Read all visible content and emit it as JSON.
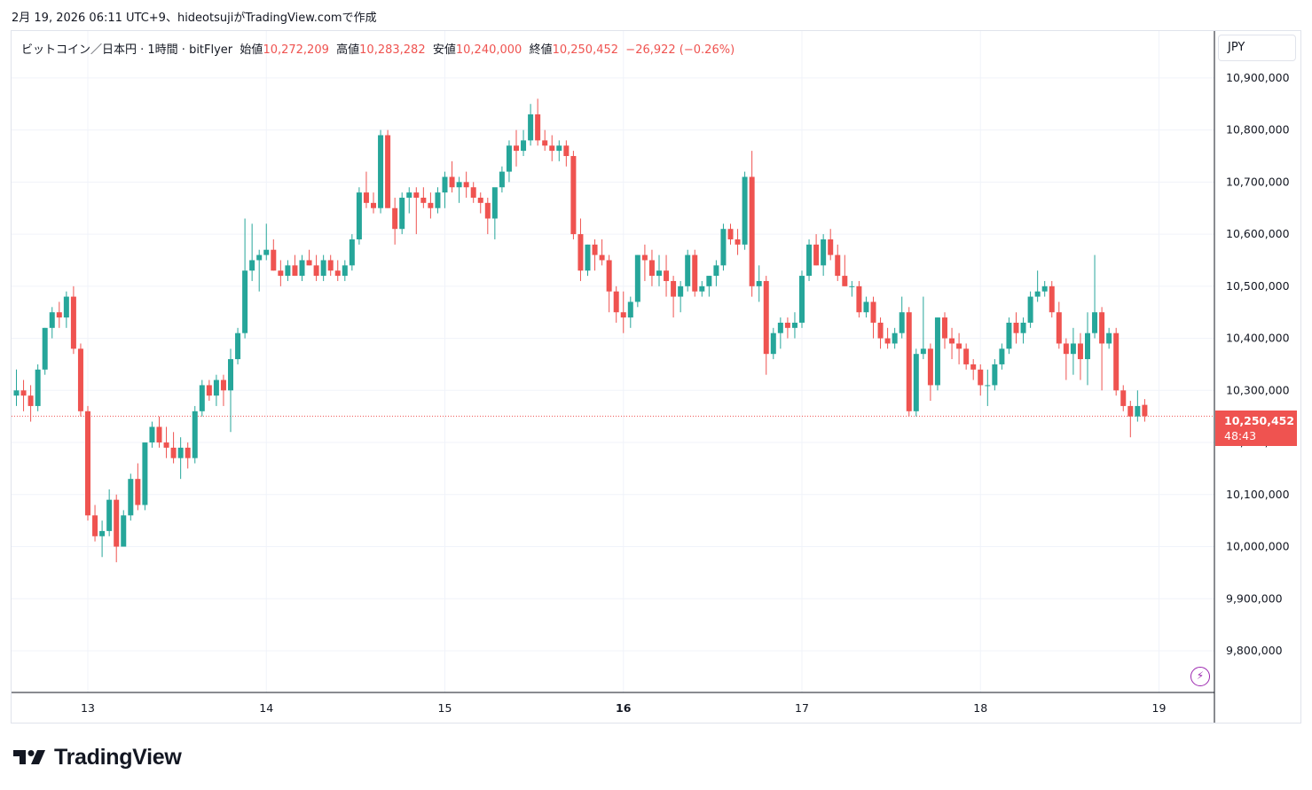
{
  "header": {
    "text": "2月 19, 2026 06:11 UTC+9、hideotsujiがTradingView.comで作成"
  },
  "legend": {
    "symbol": "ビットコイン／日本円 · 1時間 · bitFlyer",
    "open_label": "始値",
    "open_value": "10,272,209",
    "high_label": "高値",
    "high_value": "10,283,282",
    "low_label": "安値",
    "low_value": "10,240,000",
    "close_label": "終値",
    "close_value": "10,250,452",
    "change": "−26,922 (−0.26%)"
  },
  "currency": "JPY",
  "price_tag": {
    "value": "10,250,452",
    "countdown": "48:43"
  },
  "branding": {
    "logo_text": "TradingView"
  },
  "colors": {
    "up": "#26a69a",
    "down": "#ef5350",
    "grid": "#f0f3fa",
    "text": "#131722",
    "last_line": "#ef5350"
  },
  "chart_data": {
    "type": "candlestick",
    "ylim": [
      9720000,
      10990000
    ],
    "y_ticks": [
      9800000,
      9900000,
      10000000,
      10100000,
      10200000,
      10300000,
      10400000,
      10500000,
      10600000,
      10700000,
      10800000,
      10900000
    ],
    "y_tick_labels": [
      "9,800,000",
      "9,900,000",
      "10,000,000",
      "10,100,000",
      "10,200,000",
      "10,300,000",
      "10,400,000",
      "10,500,000",
      "10,600,000",
      "10,700,000",
      "10,800,000",
      "10,900,000"
    ],
    "x_ticks": [
      {
        "label": "13",
        "index": 10,
        "bold": false
      },
      {
        "label": "14",
        "index": 35,
        "bold": false
      },
      {
        "label": "15",
        "index": 60,
        "bold": false
      },
      {
        "label": "16",
        "index": 85,
        "bold": true
      },
      {
        "label": "17",
        "index": 110,
        "bold": false
      },
      {
        "label": "18",
        "index": 135,
        "bold": false
      },
      {
        "label": "19",
        "index": 160,
        "bold": false
      }
    ],
    "last_price": 10250452,
    "candles": [
      [
        10290000,
        10340000,
        10270000,
        10300000
      ],
      [
        10300000,
        10320000,
        10260000,
        10290000
      ],
      [
        10290000,
        10310000,
        10240000,
        10270000
      ],
      [
        10270000,
        10350000,
        10260000,
        10340000
      ],
      [
        10340000,
        10420000,
        10330000,
        10420000
      ],
      [
        10420000,
        10460000,
        10400000,
        10450000
      ],
      [
        10450000,
        10470000,
        10420000,
        10440000
      ],
      [
        10440000,
        10490000,
        10420000,
        10480000
      ],
      [
        10480000,
        10500000,
        10370000,
        10380000
      ],
      [
        10380000,
        10390000,
        10250000,
        10260000
      ],
      [
        10260000,
        10270000,
        10050000,
        10060000
      ],
      [
        10060000,
        10080000,
        10010000,
        10020000
      ],
      [
        10020000,
        10050000,
        9980000,
        10030000
      ],
      [
        10030000,
        10110000,
        10020000,
        10090000
      ],
      [
        10090000,
        10100000,
        9970000,
        10000000
      ],
      [
        10000000,
        10070000,
        10000000,
        10060000
      ],
      [
        10060000,
        10140000,
        10050000,
        10130000
      ],
      [
        10130000,
        10160000,
        10070000,
        10080000
      ],
      [
        10080000,
        10200000,
        10070000,
        10200000
      ],
      [
        10200000,
        10240000,
        10190000,
        10230000
      ],
      [
        10230000,
        10250000,
        10190000,
        10200000
      ],
      [
        10200000,
        10230000,
        10170000,
        10190000
      ],
      [
        10190000,
        10220000,
        10160000,
        10170000
      ],
      [
        10170000,
        10210000,
        10130000,
        10190000
      ],
      [
        10190000,
        10200000,
        10150000,
        10170000
      ],
      [
        10170000,
        10270000,
        10160000,
        10260000
      ],
      [
        10260000,
        10320000,
        10250000,
        10310000
      ],
      [
        10310000,
        10320000,
        10280000,
        10290000
      ],
      [
        10290000,
        10330000,
        10270000,
        10320000
      ],
      [
        10320000,
        10330000,
        10270000,
        10300000
      ],
      [
        10300000,
        10380000,
        10220000,
        10360000
      ],
      [
        10360000,
        10420000,
        10350000,
        10410000
      ],
      [
        10410000,
        10630000,
        10400000,
        10530000
      ],
      [
        10530000,
        10620000,
        10510000,
        10550000
      ],
      [
        10550000,
        10570000,
        10490000,
        10560000
      ],
      [
        10560000,
        10620000,
        10550000,
        10570000
      ],
      [
        10570000,
        10590000,
        10530000,
        10530000
      ],
      [
        10530000,
        10550000,
        10500000,
        10520000
      ],
      [
        10520000,
        10550000,
        10510000,
        10540000
      ],
      [
        10540000,
        10560000,
        10520000,
        10520000
      ],
      [
        10520000,
        10560000,
        10510000,
        10550000
      ],
      [
        10550000,
        10570000,
        10540000,
        10540000
      ],
      [
        10540000,
        10560000,
        10510000,
        10520000
      ],
      [
        10520000,
        10560000,
        10510000,
        10550000
      ],
      [
        10550000,
        10560000,
        10520000,
        10530000
      ],
      [
        10530000,
        10550000,
        10510000,
        10520000
      ],
      [
        10520000,
        10550000,
        10510000,
        10540000
      ],
      [
        10540000,
        10600000,
        10530000,
        10590000
      ],
      [
        10590000,
        10690000,
        10580000,
        10680000
      ],
      [
        10680000,
        10720000,
        10650000,
        10660000
      ],
      [
        10660000,
        10680000,
        10640000,
        10650000
      ],
      [
        10650000,
        10800000,
        10640000,
        10790000
      ],
      [
        10790000,
        10800000,
        10650000,
        10650000
      ],
      [
        10650000,
        10670000,
        10580000,
        10610000
      ],
      [
        10610000,
        10680000,
        10600000,
        10670000
      ],
      [
        10670000,
        10690000,
        10640000,
        10680000
      ],
      [
        10680000,
        10690000,
        10600000,
        10670000
      ],
      [
        10670000,
        10690000,
        10650000,
        10660000
      ],
      [
        10660000,
        10680000,
        10630000,
        10650000
      ],
      [
        10650000,
        10690000,
        10640000,
        10680000
      ],
      [
        10680000,
        10720000,
        10650000,
        10710000
      ],
      [
        10710000,
        10740000,
        10680000,
        10690000
      ],
      [
        10690000,
        10710000,
        10660000,
        10700000
      ],
      [
        10700000,
        10720000,
        10670000,
        10690000
      ],
      [
        10690000,
        10700000,
        10660000,
        10670000
      ],
      [
        10670000,
        10680000,
        10640000,
        10660000
      ],
      [
        10660000,
        10670000,
        10600000,
        10630000
      ],
      [
        10630000,
        10680000,
        10590000,
        10690000
      ],
      [
        10690000,
        10730000,
        10680000,
        10720000
      ],
      [
        10720000,
        10780000,
        10700000,
        10770000
      ],
      [
        10770000,
        10800000,
        10730000,
        10760000
      ],
      [
        10760000,
        10800000,
        10750000,
        10780000
      ],
      [
        10780000,
        10850000,
        10770000,
        10830000
      ],
      [
        10830000,
        10860000,
        10770000,
        10780000
      ],
      [
        10780000,
        10800000,
        10760000,
        10770000
      ],
      [
        10770000,
        10790000,
        10740000,
        10760000
      ],
      [
        10760000,
        10780000,
        10740000,
        10770000
      ],
      [
        10770000,
        10780000,
        10730000,
        10750000
      ],
      [
        10750000,
        10760000,
        10590000,
        10600000
      ],
      [
        10600000,
        10630000,
        10510000,
        10530000
      ],
      [
        10530000,
        10580000,
        10520000,
        10580000
      ],
      [
        10580000,
        10590000,
        10530000,
        10560000
      ],
      [
        10560000,
        10590000,
        10540000,
        10550000
      ],
      [
        10550000,
        10560000,
        10450000,
        10490000
      ],
      [
        10490000,
        10500000,
        10430000,
        10450000
      ],
      [
        10450000,
        10490000,
        10410000,
        10440000
      ],
      [
        10440000,
        10480000,
        10420000,
        10470000
      ],
      [
        10470000,
        10560000,
        10460000,
        10560000
      ],
      [
        10560000,
        10580000,
        10510000,
        10550000
      ],
      [
        10550000,
        10570000,
        10500000,
        10520000
      ],
      [
        10520000,
        10560000,
        10500000,
        10530000
      ],
      [
        10530000,
        10560000,
        10480000,
        10510000
      ],
      [
        10510000,
        10520000,
        10440000,
        10480000
      ],
      [
        10480000,
        10510000,
        10450000,
        10500000
      ],
      [
        10500000,
        10570000,
        10490000,
        10560000
      ],
      [
        10560000,
        10570000,
        10480000,
        10490000
      ],
      [
        10490000,
        10510000,
        10480000,
        10500000
      ],
      [
        10500000,
        10520000,
        10480000,
        10520000
      ],
      [
        10520000,
        10550000,
        10500000,
        10540000
      ],
      [
        10540000,
        10620000,
        10530000,
        10610000
      ],
      [
        10610000,
        10620000,
        10580000,
        10590000
      ],
      [
        10590000,
        10610000,
        10560000,
        10580000
      ],
      [
        10580000,
        10720000,
        10570000,
        10710000
      ],
      [
        10710000,
        10760000,
        10480000,
        10500000
      ],
      [
        10500000,
        10540000,
        10470000,
        10510000
      ],
      [
        10510000,
        10520000,
        10330000,
        10370000
      ],
      [
        10370000,
        10420000,
        10360000,
        10410000
      ],
      [
        10410000,
        10440000,
        10380000,
        10430000
      ],
      [
        10430000,
        10440000,
        10400000,
        10420000
      ],
      [
        10420000,
        10450000,
        10400000,
        10430000
      ],
      [
        10430000,
        10530000,
        10420000,
        10520000
      ],
      [
        10520000,
        10590000,
        10510000,
        10580000
      ],
      [
        10580000,
        10600000,
        10540000,
        10540000
      ],
      [
        10540000,
        10600000,
        10520000,
        10590000
      ],
      [
        10590000,
        10610000,
        10550000,
        10560000
      ],
      [
        10560000,
        10580000,
        10510000,
        10520000
      ],
      [
        10520000,
        10560000,
        10500000,
        10500000
      ],
      [
        10500000,
        10510000,
        10480000,
        10500000
      ],
      [
        10500000,
        10510000,
        10440000,
        10450000
      ],
      [
        10450000,
        10480000,
        10440000,
        10470000
      ],
      [
        10470000,
        10480000,
        10400000,
        10430000
      ],
      [
        10430000,
        10440000,
        10380000,
        10400000
      ],
      [
        10400000,
        10420000,
        10380000,
        10390000
      ],
      [
        10390000,
        10420000,
        10380000,
        10410000
      ],
      [
        10410000,
        10480000,
        10400000,
        10450000
      ],
      [
        10450000,
        10460000,
        10250000,
        10260000
      ],
      [
        10260000,
        10380000,
        10250000,
        10370000
      ],
      [
        10370000,
        10480000,
        10360000,
        10380000
      ],
      [
        10380000,
        10390000,
        10280000,
        10310000
      ],
      [
        10310000,
        10440000,
        10300000,
        10440000
      ],
      [
        10440000,
        10450000,
        10380000,
        10400000
      ],
      [
        10400000,
        10420000,
        10360000,
        10390000
      ],
      [
        10390000,
        10410000,
        10350000,
        10380000
      ],
      [
        10380000,
        10390000,
        10340000,
        10350000
      ],
      [
        10350000,
        10360000,
        10320000,
        10340000
      ],
      [
        10340000,
        10350000,
        10290000,
        10310000
      ],
      [
        10310000,
        10340000,
        10270000,
        10310000
      ],
      [
        10310000,
        10360000,
        10300000,
        10350000
      ],
      [
        10350000,
        10390000,
        10340000,
        10380000
      ],
      [
        10380000,
        10440000,
        10370000,
        10430000
      ],
      [
        10430000,
        10450000,
        10390000,
        10410000
      ],
      [
        10410000,
        10440000,
        10390000,
        10430000
      ],
      [
        10430000,
        10490000,
        10420000,
        10480000
      ],
      [
        10480000,
        10530000,
        10470000,
        10490000
      ],
      [
        10490000,
        10510000,
        10480000,
        10500000
      ],
      [
        10500000,
        10510000,
        10440000,
        10450000
      ],
      [
        10450000,
        10470000,
        10380000,
        10390000
      ],
      [
        10390000,
        10400000,
        10320000,
        10370000
      ],
      [
        10370000,
        10420000,
        10330000,
        10390000
      ],
      [
        10390000,
        10410000,
        10320000,
        10360000
      ],
      [
        10360000,
        10450000,
        10310000,
        10410000
      ],
      [
        10410000,
        10560000,
        10400000,
        10450000
      ],
      [
        10450000,
        10460000,
        10300000,
        10390000
      ],
      [
        10390000,
        10420000,
        10380000,
        10410000
      ],
      [
        10410000,
        10420000,
        10290000,
        10300000
      ],
      [
        10300000,
        10310000,
        10260000,
        10270000
      ],
      [
        10270000,
        10280000,
        10210000,
        10250000
      ],
      [
        10250000,
        10300000,
        10240000,
        10270000
      ],
      [
        10272209,
        10283282,
        10240000,
        10250452
      ]
    ]
  }
}
